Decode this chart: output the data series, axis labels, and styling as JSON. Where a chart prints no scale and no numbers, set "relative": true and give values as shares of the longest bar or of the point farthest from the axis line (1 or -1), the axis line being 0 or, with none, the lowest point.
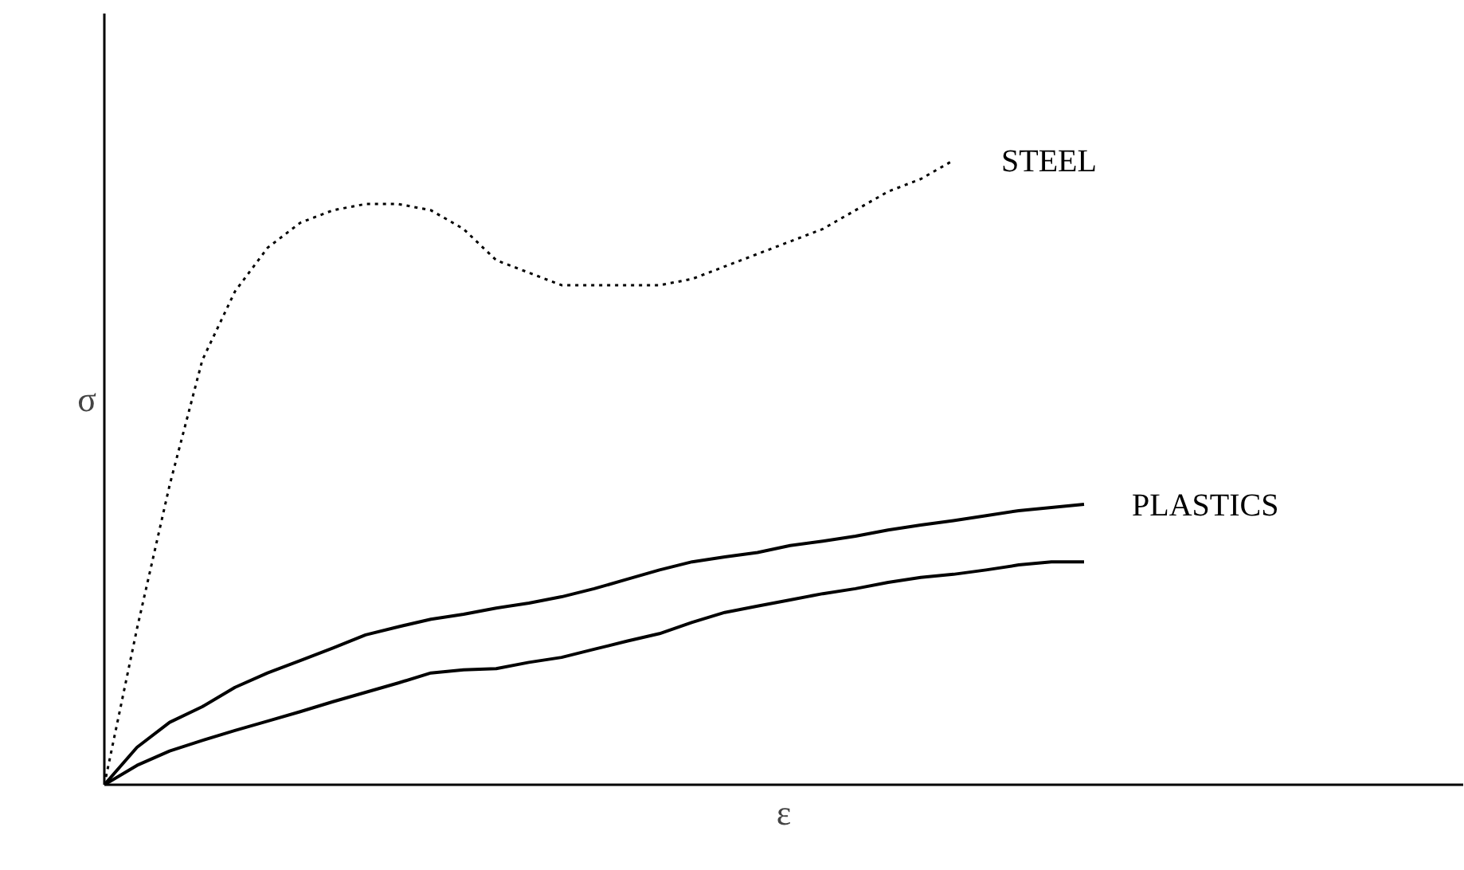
{
  "chart_data": {
    "type": "line",
    "relative": true,
    "xlabel": "ε",
    "ylabel": "σ",
    "legend": false,
    "marker": "none",
    "categories": [
      null,
      null,
      null,
      null,
      null,
      null,
      null,
      null,
      null,
      null,
      null,
      null,
      null,
      null,
      null,
      null,
      null,
      null,
      null,
      null,
      null,
      null,
      null,
      null,
      null,
      null,
      null,
      null,
      null,
      null,
      null
    ],
    "series": [
      {
        "name": "STEEL",
        "color": "#000000",
        "line_style": "dotted",
        "values": [
          0,
          0.25,
          0.48,
          0.68,
          0.79,
          0.86,
          0.9,
          0.92,
          0.93,
          0.93,
          0.92,
          0.89,
          0.84,
          0.82,
          0.8,
          0.8,
          0.8,
          0.8,
          0.81,
          0.83,
          0.85,
          0.87,
          0.89,
          0.92,
          0.95,
          0.97,
          1,
          null,
          null,
          null,
          null
        ]
      },
      {
        "name": "PLASTICS",
        "color": "#000000",
        "line_style": "solid",
        "values": [
          0,
          0.06,
          0.1,
          0.125,
          0.156,
          0.179,
          0.199,
          0.219,
          0.24,
          0.253,
          0.265,
          0.273,
          0.283,
          0.291,
          0.301,
          0.314,
          0.329,
          0.344,
          0.357,
          0.365,
          0.372,
          0.383,
          0.39,
          0.398,
          0.408,
          0.416,
          0.423,
          0.431,
          0.439,
          0.444,
          0.449
        ]
      },
      {
        "color": "#000000",
        "line_style": "solid",
        "values": [
          0,
          0.031,
          0.054,
          0.071,
          0.087,
          0.102,
          0.117,
          0.133,
          0.148,
          0.163,
          0.179,
          0.184,
          0.186,
          0.196,
          0.204,
          0.217,
          0.23,
          0.242,
          0.26,
          0.276,
          0.286,
          0.296,
          0.306,
          0.314,
          0.324,
          0.332,
          0.337,
          0.344,
          0.352,
          0.357,
          0.357
        ]
      }
    ]
  }
}
